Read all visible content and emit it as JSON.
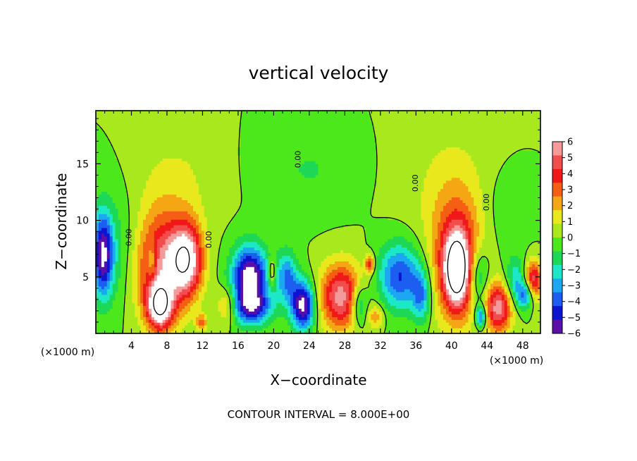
{
  "chart_data": {
    "type": "heatmap",
    "title": "vertical velocity",
    "xlabel": "X−coordinate",
    "ylabel": "Z−coordinate",
    "x_unit_left": "(×1000 m)",
    "x_unit_right": "(×1000 m)",
    "footer": "CONTOUR INTERVAL = 8.000E+00",
    "xlim": [
      0,
      50
    ],
    "ylim": [
      0,
      19.7
    ],
    "x_ticks": [
      4,
      8,
      12,
      16,
      20,
      24,
      28,
      32,
      36,
      40,
      44,
      48
    ],
    "x_tick_labels": [
      "4",
      "8",
      "12",
      "16",
      "20",
      "24",
      "28",
      "32",
      "36",
      "40",
      "44",
      "48"
    ],
    "y_ticks": [
      5,
      10,
      15
    ],
    "y_tick_labels": [
      "5",
      "10",
      "15"
    ],
    "colorbar": {
      "min": -6,
      "max": 6,
      "labels": [
        "6",
        "5",
        "4",
        "3",
        "2",
        "1",
        "0",
        "−1",
        "−2",
        "−3",
        "−4",
        "−5",
        "−6"
      ],
      "colors": [
        "#f59a9a",
        "#f24d4d",
        "#f01818",
        "#f55f14",
        "#f5a614",
        "#e8e81c",
        "#a8e81c",
        "#4de81c",
        "#1cd856",
        "#1ce8c8",
        "#1ca8f0",
        "#1c5ef0",
        "#0c14d0",
        "#5a10a8"
      ],
      "background": "#4ee61c"
    },
    "contour_label": "0.00",
    "blobs": [
      {
        "x": 0.8,
        "z": 7.0,
        "rx": 1.1,
        "rz": 3.6,
        "w": -5.5
      },
      {
        "x": 7.3,
        "z": 5.8,
        "rx": 2.8,
        "rz": 4.8,
        "w": 5.2
      },
      {
        "x": 10.2,
        "z": 6.6,
        "rx": 1.8,
        "rz": 3.2,
        "w": 6.8
      },
      {
        "x": 7.2,
        "z": 2.4,
        "rx": 1.4,
        "rz": 1.9,
        "w": 6.5
      },
      {
        "x": 6.3,
        "z": 6.4,
        "rx": 0.5,
        "rz": 1.5,
        "w": -2.5
      },
      {
        "x": 11.9,
        "z": 1.0,
        "rx": 0.6,
        "rz": 0.7,
        "w": 3.0
      },
      {
        "x": 17.3,
        "z": 5.0,
        "rx": 2.0,
        "rz": 2.7,
        "w": -6.8
      },
      {
        "x": 17.5,
        "z": 2.3,
        "rx": 2.3,
        "rz": 1.5,
        "w": -4.2
      },
      {
        "x": 14.8,
        "z": 2.5,
        "rx": 1.2,
        "rz": 1.6,
        "w": 2.5
      },
      {
        "x": 21.5,
        "z": 5.0,
        "rx": 1.2,
        "rz": 2.3,
        "w": -3.5
      },
      {
        "x": 19.8,
        "z": 5.4,
        "rx": 0.45,
        "rz": 1.3,
        "w": 2.5
      },
      {
        "x": 23.3,
        "z": 2.5,
        "rx": 1.3,
        "rz": 2.1,
        "w": -6.5
      },
      {
        "x": 27.6,
        "z": 3.3,
        "rx": 2.4,
        "rz": 2.9,
        "w": 5.6
      },
      {
        "x": 29.6,
        "z": 2.6,
        "rx": 1.0,
        "rz": 1.9,
        "w": -3.4
      },
      {
        "x": 30.8,
        "z": 6.2,
        "rx": 0.5,
        "rz": 0.8,
        "w": 4.2
      },
      {
        "x": 31.5,
        "z": 1.5,
        "rx": 0.9,
        "rz": 1.0,
        "w": 2.2
      },
      {
        "x": 34.2,
        "z": 5.1,
        "rx": 2.4,
        "rz": 2.9,
        "w": -4.4
      },
      {
        "x": 36.6,
        "z": 3.3,
        "rx": 1.0,
        "rz": 2.3,
        "w": -3.2
      },
      {
        "x": 40.6,
        "z": 6.4,
        "rx": 2.7,
        "rz": 5.4,
        "w": 4.8
      },
      {
        "x": 40.6,
        "z": 5.6,
        "rx": 1.3,
        "rz": 2.9,
        "w": 7.0
      },
      {
        "x": 43.0,
        "z": 5.0,
        "rx": 1.2,
        "rz": 2.6,
        "w": -3.2
      },
      {
        "x": 43.3,
        "z": 1.5,
        "rx": 0.6,
        "rz": 1.0,
        "w": -4.5
      },
      {
        "x": 45.3,
        "z": 2.3,
        "rx": 1.5,
        "rz": 2.2,
        "w": 5.6
      },
      {
        "x": 47.2,
        "z": 4.6,
        "rx": 1.2,
        "rz": 2.1,
        "w": -2.6
      },
      {
        "x": 49.2,
        "z": 4.6,
        "rx": 1.0,
        "rz": 1.8,
        "w": 5.2
      },
      {
        "x": 48.4,
        "z": 3.4,
        "rx": 1.0,
        "rz": 1.2,
        "w": -4.0
      },
      {
        "x": 9.0,
        "z": 13.5,
        "rx": 4.5,
        "rz": 4.5,
        "w": 1.0
      },
      {
        "x": 40.0,
        "z": 13.0,
        "rx": 5.5,
        "rz": 6.0,
        "w": 1.0
      },
      {
        "x": 2.0,
        "z": 7.5,
        "rx": 2.5,
        "rz": 5.0,
        "w": -1.3
      },
      {
        "x": 24.0,
        "z": 14.5,
        "rx": 5.0,
        "rz": 3.5,
        "w": -0.9
      },
      {
        "x": 46.0,
        "z": 11.0,
        "rx": 3.0,
        "rz": 4.0,
        "w": -0.8
      }
    ]
  }
}
